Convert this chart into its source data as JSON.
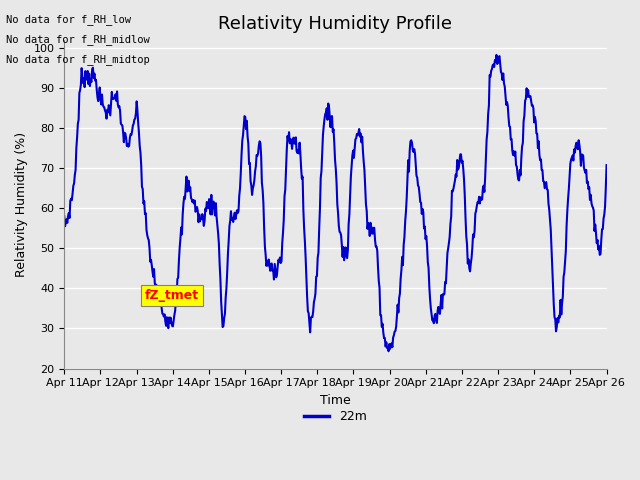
{
  "title": "Relativity Humidity Profile",
  "xlabel": "Time",
  "ylabel": "Relativity Humidity (%)",
  "ylim": [
    20,
    102
  ],
  "yticks": [
    20,
    30,
    40,
    50,
    60,
    70,
    80,
    90,
    100
  ],
  "line_color": "#0000CC",
  "line_width": 1.5,
  "background_color": "#E8E8E8",
  "plot_bg_color": "#E8E8E8",
  "legend_label": "22m",
  "legend_line_color": "#0000CC",
  "no_data_texts": [
    "No data for f_RH_low",
    "No data for f_RH_midlow",
    "No data for f_RH_midtop"
  ],
  "tz_label": "fZ_tmet",
  "x_tick_labels": [
    "Apr 11",
    "Apr 12",
    "Apr 13",
    "Apr 14",
    "Apr 15",
    "Apr 16",
    "Apr 17",
    "Apr 18",
    "Apr 19",
    "Apr 20",
    "Apr 21",
    "Apr 22",
    "Apr 23",
    "Apr 24",
    "Apr 25",
    "Apr 26"
  ],
  "title_fontsize": 13,
  "axis_fontsize": 9,
  "tick_fontsize": 8,
  "keypoints_x": [
    0,
    0.25,
    0.5,
    0.8,
    1.0,
    1.2,
    1.4,
    1.6,
    1.8,
    2.0,
    2.2,
    2.5,
    2.8,
    3.0,
    3.2,
    3.4,
    3.6,
    3.8,
    4.0,
    4.2,
    4.4,
    4.6,
    4.8,
    5.0,
    5.2,
    5.4,
    5.6,
    5.8,
    6.0,
    6.2,
    6.5,
    6.8,
    7.0,
    7.2,
    7.4,
    7.6,
    7.8,
    8.0,
    8.2,
    8.4,
    8.6,
    8.8,
    9.0,
    9.2,
    9.4,
    9.6,
    9.8,
    10.0,
    10.2,
    10.5,
    10.8,
    11.0,
    11.2,
    11.4,
    11.6,
    11.8,
    12.0,
    12.2,
    12.4,
    12.6,
    12.8,
    13.0,
    13.2,
    13.4,
    13.6,
    13.8,
    14.0,
    14.2,
    14.4,
    14.6,
    14.8,
    15.0
  ],
  "keypoints_y": [
    56,
    65,
    93,
    93,
    87,
    84,
    89,
    80,
    76,
    84,
    61,
    42,
    33,
    32,
    50,
    66,
    61,
    57,
    61,
    60,
    31,
    57,
    59,
    83,
    65,
    76,
    46,
    45,
    48,
    77,
    75,
    31,
    46,
    83,
    83,
    56,
    48,
    76,
    79,
    56,
    53,
    31,
    25,
    32,
    53,
    77,
    65,
    53,
    32,
    39,
    68,
    72,
    45,
    60,
    65,
    93,
    97,
    88,
    75,
    69,
    89,
    83,
    70,
    62,
    30,
    40,
    71,
    76,
    70,
    61,
    49,
    69
  ]
}
